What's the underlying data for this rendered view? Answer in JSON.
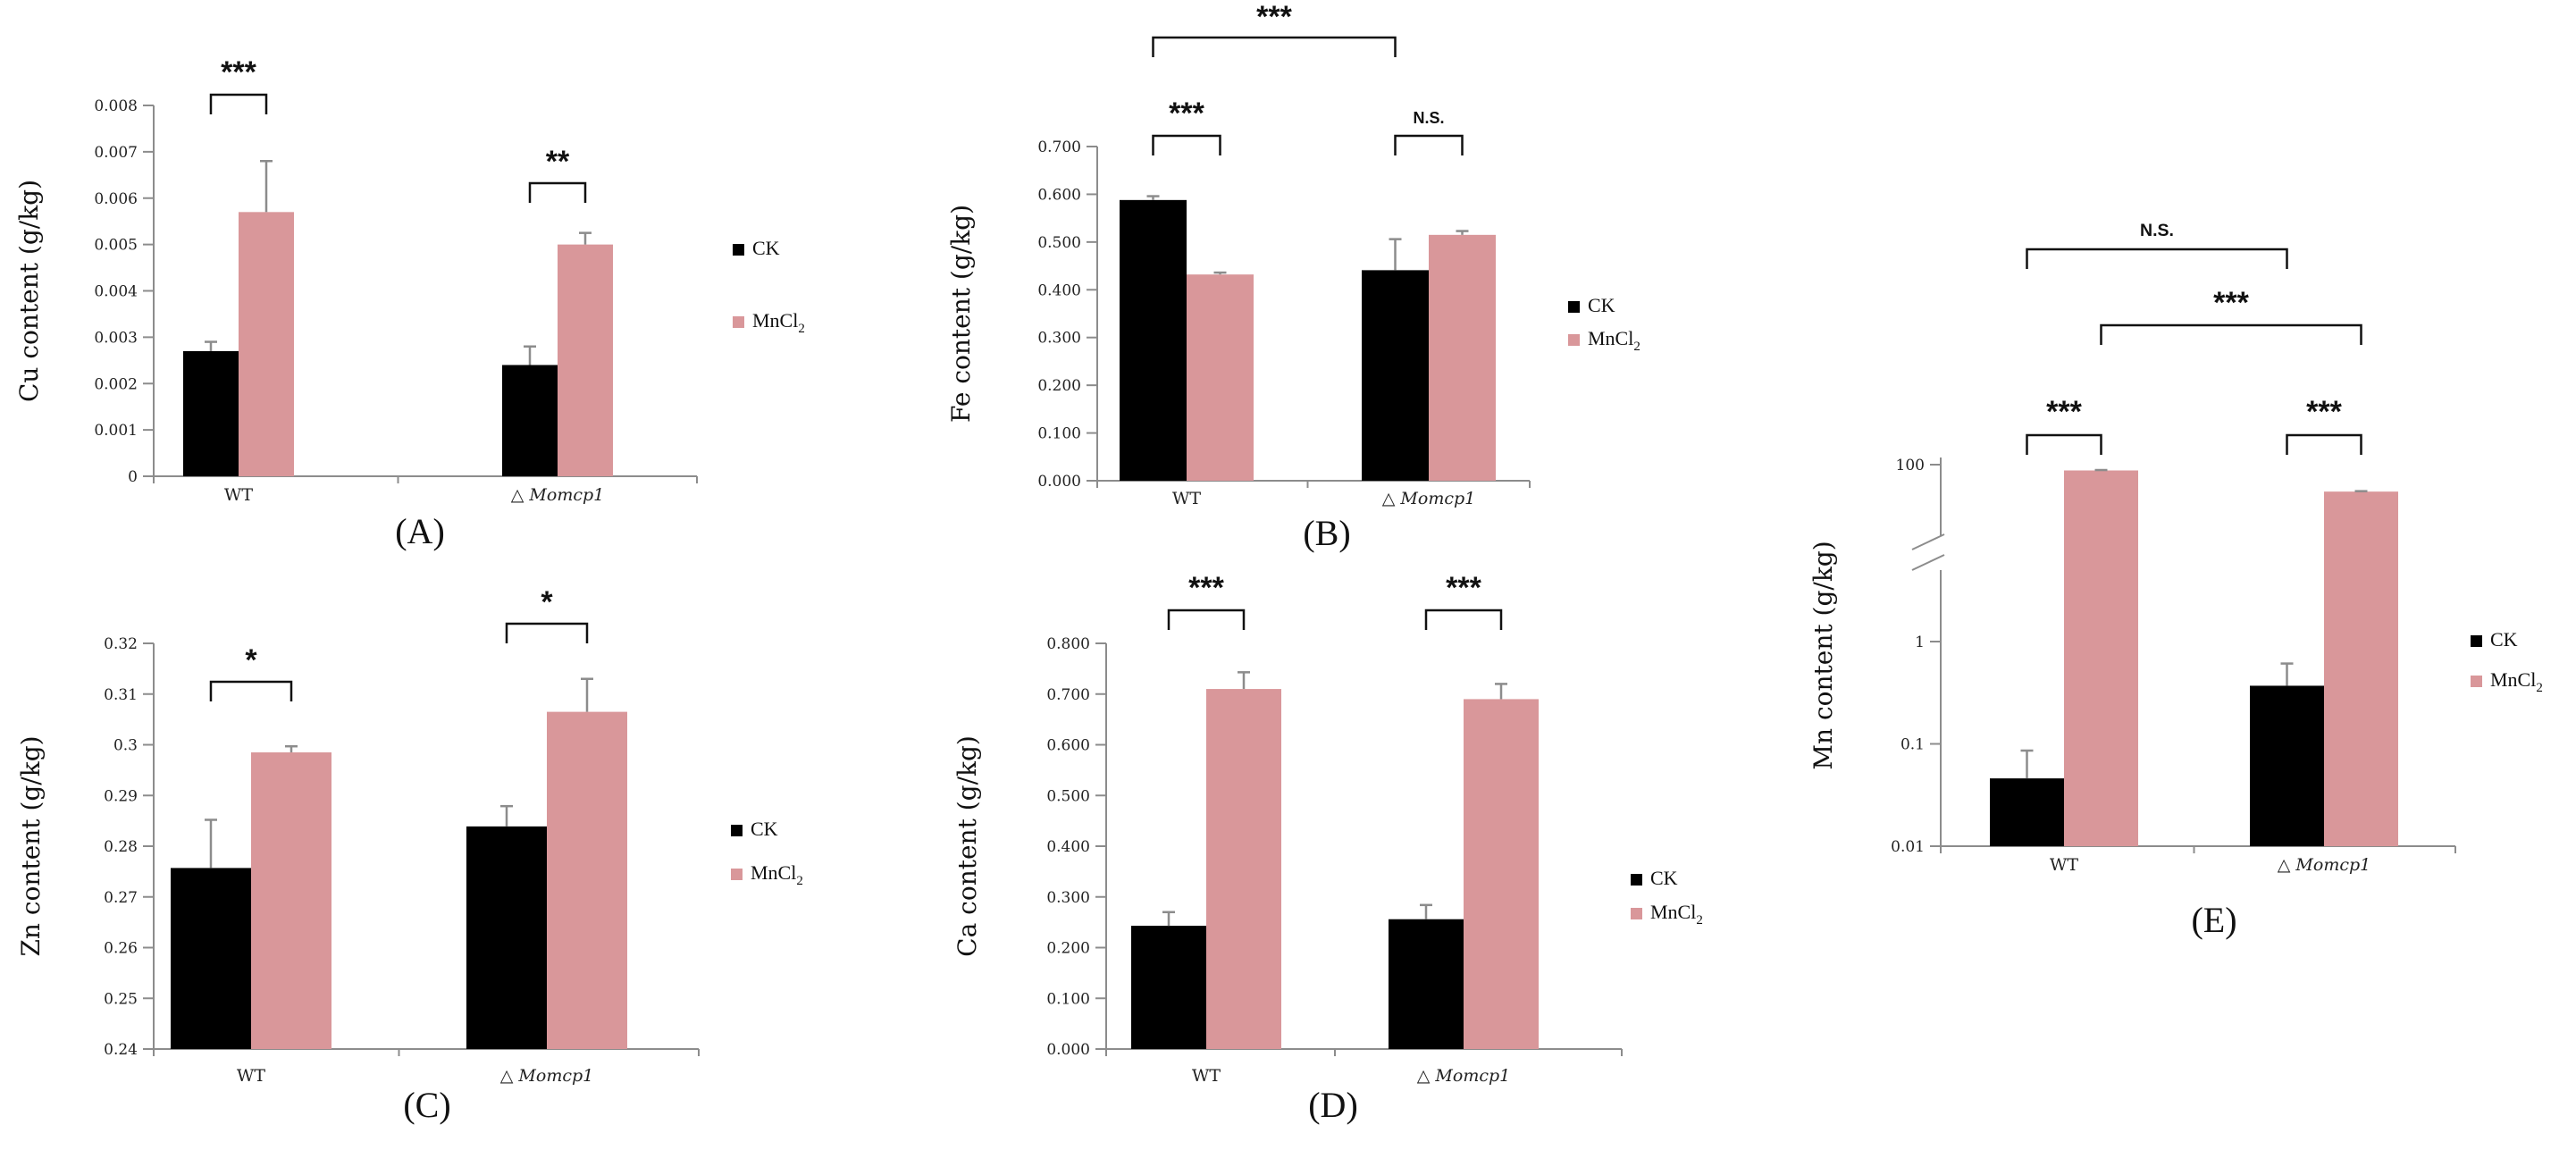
{
  "colors": {
    "ck": "#000000",
    "mncl2": "#d9979a",
    "axis": "#8c8c8c"
  },
  "legend": {
    "ck": "CK",
    "mn_prefix": "MnCl",
    "mn_sub": "2"
  },
  "chart_data": [
    {
      "id": "A",
      "type": "bar",
      "panel_label": "(A)",
      "ylabel_element": "Cu",
      "ylabel_rest": " content (g/kg)",
      "categories": [
        {
          "main": "WT",
          "italic": ""
        },
        {
          "main": "△ ",
          "italic": "Momcp1"
        }
      ],
      "series": [
        {
          "name": "CK",
          "values": [
            0.0027,
            0.0024
          ],
          "errors": [
            0.0002,
            0.0004
          ]
        },
        {
          "name": "MnCl2",
          "values": [
            0.0057,
            0.005
          ],
          "errors": [
            0.0011,
            0.00025
          ]
        }
      ],
      "ylim": [
        0,
        0.008
      ],
      "ticks": [
        0,
        0.001,
        0.002,
        0.003,
        0.004,
        0.005,
        0.006,
        0.007,
        0.008
      ],
      "tick_labels": [
        "0",
        "0.001",
        "0.002",
        "0.003",
        "0.004",
        "0.005",
        "0.006",
        "0.007",
        "0.008"
      ],
      "significance": [
        {
          "from": "WT-CK",
          "to": "WT-MnCl2",
          "label": "***"
        },
        {
          "from": "Mut-CK",
          "to": "Mut-MnCl2",
          "label": "**"
        }
      ]
    },
    {
      "id": "B",
      "type": "bar",
      "panel_label": "(B)",
      "ylabel_element": "Fe",
      "ylabel_rest": " content (g/kg)",
      "categories": [
        {
          "main": "WT",
          "italic": ""
        },
        {
          "main": "△ ",
          "italic": "Momcp1"
        }
      ],
      "series": [
        {
          "name": "CK",
          "values": [
            0.588,
            0.441
          ],
          "errors": [
            0.008,
            0.065
          ]
        },
        {
          "name": "MnCl2",
          "values": [
            0.432,
            0.515
          ],
          "errors": [
            0.004,
            0.008
          ]
        }
      ],
      "ylim": [
        0,
        0.7
      ],
      "ticks": [
        0,
        0.1,
        0.2,
        0.3,
        0.4,
        0.5,
        0.6,
        0.7
      ],
      "tick_labels": [
        "0.000",
        "0.100",
        "0.200",
        "0.300",
        "0.400",
        "0.500",
        "0.600",
        "0.700"
      ],
      "significance": [
        {
          "from": "WT-CK",
          "to": "WT-MnCl2",
          "label": "***"
        },
        {
          "from": "Mut-CK",
          "to": "Mut-MnCl2",
          "label": "N.S."
        },
        {
          "from": "WT-CK",
          "to": "Mut-CK",
          "label": "***"
        }
      ]
    },
    {
      "id": "C",
      "type": "bar",
      "panel_label": "(C)",
      "ylabel_element": "Zn",
      "ylabel_rest": " content (g/kg)",
      "categories": [
        {
          "main": "WT",
          "italic": ""
        },
        {
          "main": "△ ",
          "italic": "Momcp1"
        }
      ],
      "series": [
        {
          "name": "CK",
          "values": [
            0.2757,
            0.2839
          ],
          "errors": [
            0.0095,
            0.004
          ]
        },
        {
          "name": "MnCl2",
          "values": [
            0.2985,
            0.3065
          ],
          "errors": [
            0.0012,
            0.0065
          ]
        }
      ],
      "ylim": [
        0.24,
        0.32
      ],
      "ticks": [
        0.24,
        0.25,
        0.26,
        0.27,
        0.28,
        0.29,
        0.3,
        0.31,
        0.32
      ],
      "tick_labels": [
        "0.24",
        "0.25",
        "0.26",
        "0.27",
        "0.28",
        "0.29",
        "0.3",
        "0.31",
        "0.32"
      ],
      "significance": [
        {
          "from": "WT-CK",
          "to": "WT-MnCl2",
          "label": "*"
        },
        {
          "from": "Mut-CK",
          "to": "Mut-MnCl2",
          "label": "*"
        }
      ]
    },
    {
      "id": "D",
      "type": "bar",
      "panel_label": "(D)",
      "ylabel_element": "Ca",
      "ylabel_rest": " content (g/kg)",
      "categories": [
        {
          "main": "WT",
          "italic": ""
        },
        {
          "main": "△ ",
          "italic": "Momcp1"
        }
      ],
      "series": [
        {
          "name": "CK",
          "values": [
            0.243,
            0.256
          ],
          "errors": [
            0.027,
            0.028
          ]
        },
        {
          "name": "MnCl2",
          "values": [
            0.71,
            0.69
          ],
          "errors": [
            0.033,
            0.03
          ]
        }
      ],
      "ylim": [
        0,
        0.8
      ],
      "ticks": [
        0,
        0.1,
        0.2,
        0.3,
        0.4,
        0.5,
        0.6,
        0.7,
        0.8
      ],
      "tick_labels": [
        "0.000",
        "0.100",
        "0.200",
        "0.300",
        "0.400",
        "0.500",
        "0.600",
        "0.700",
        "0.800"
      ],
      "significance": [
        {
          "from": "WT-CK",
          "to": "WT-MnCl2",
          "label": "***"
        },
        {
          "from": "Mut-CK",
          "to": "Mut-MnCl2",
          "label": "***"
        }
      ]
    },
    {
      "id": "E",
      "type": "bar",
      "panel_label": "(E)",
      "yscale": "log-broken",
      "ylabel_element": "Mn",
      "ylabel_rest": " content (g/kg)",
      "categories": [
        {
          "main": "WT",
          "italic": ""
        },
        {
          "main": "△ ",
          "italic": "Momcp1"
        }
      ],
      "series": [
        {
          "name": "CK",
          "values": [
            0.046,
            0.37
          ],
          "errors": [
            0.04,
            0.24
          ]
        },
        {
          "name": "MnCl2",
          "values": [
            85,
            47
          ],
          "errors": [
            1,
            0.6
          ]
        }
      ],
      "ylim": [
        0.01,
        100
      ],
      "ticks": [
        0.01,
        0.1,
        1,
        100
      ],
      "tick_labels": [
        "0.01",
        "0.1",
        "1",
        "100"
      ],
      "significance": [
        {
          "from": "WT-CK",
          "to": "WT-MnCl2",
          "label": "***"
        },
        {
          "from": "Mut-CK",
          "to": "Mut-MnCl2",
          "label": "***"
        },
        {
          "from": "WT-MnCl2",
          "to": "Mut-MnCl2",
          "label": "***"
        },
        {
          "from": "WT-CK",
          "to": "Mut-CK",
          "label": "N.S."
        }
      ]
    }
  ]
}
